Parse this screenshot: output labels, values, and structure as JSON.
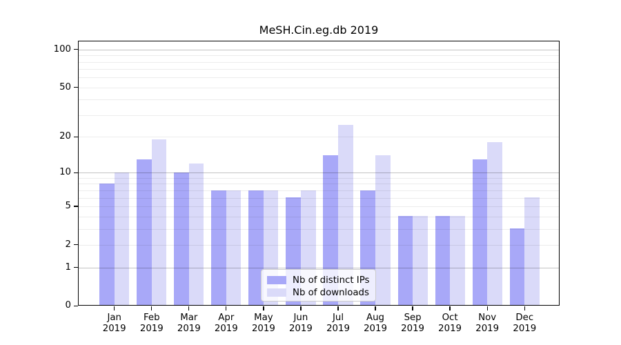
{
  "chart_data": {
    "type": "bar",
    "title": "MeSH.Cin.eg.db 2019",
    "categories": [
      "Jan 2019",
      "Feb 2019",
      "Mar 2019",
      "Apr 2019",
      "May 2019",
      "Jun 2019",
      "Jul 2019",
      "Aug 2019",
      "Sep 2019",
      "Oct 2019",
      "Nov 2019",
      "Dec 2019"
    ],
    "series": [
      {
        "name": "Nb of distinct IPs",
        "color": "#a8a8f8",
        "values": [
          8,
          13,
          10,
          7,
          7,
          6,
          14,
          7,
          4,
          4,
          13,
          3
        ]
      },
      {
        "name": "Nb of downloads",
        "color": "#dadaf9",
        "values": [
          10,
          19,
          12,
          7,
          7,
          7,
          25,
          14,
          4,
          4,
          18,
          6
        ]
      }
    ],
    "xlabel": "",
    "ylabel": "",
    "yscale": "log1p",
    "ylim": [
      0,
      117
    ],
    "yticks": [
      0,
      1,
      2,
      5,
      10,
      20,
      50,
      100
    ],
    "grid": "horizontal; faint minor lines at 2-9 and 20-90, darker lines at 1, 10, 100",
    "legend_position": "lower center inside plot"
  }
}
